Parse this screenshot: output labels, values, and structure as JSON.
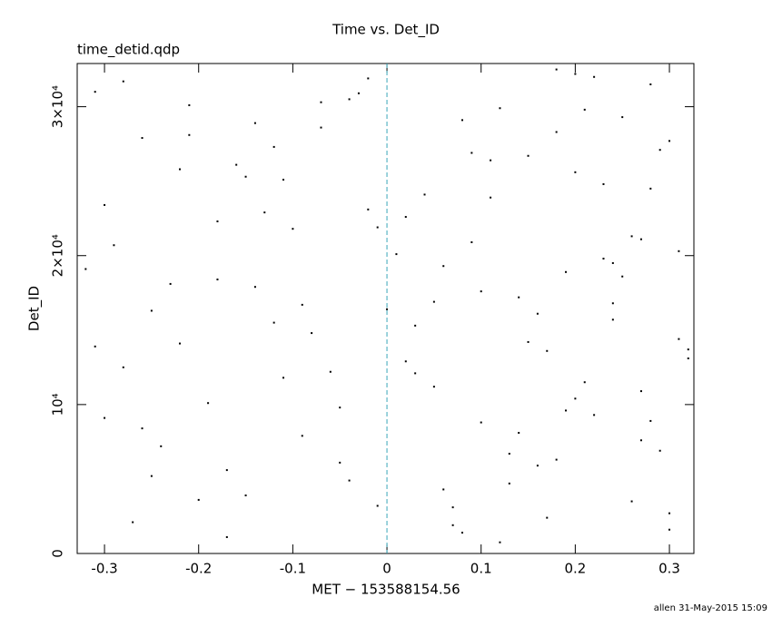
{
  "chart_data": {
    "type": "scatter",
    "title": "Time vs. Det_ID",
    "subtitle": "time_detid.qdp",
    "x_label": "MET − 153588154.56",
    "y_label": "Det_ID",
    "footer": "allen 31-May-2015 15:09",
    "xlim": [
      -0.329,
      0.326
    ],
    "ylim": [
      0,
      32900
    ],
    "xticks": [
      -0.3,
      -0.2,
      -0.1,
      0,
      0.1,
      0.2,
      0.3
    ],
    "yticks": [
      0,
      {
        "value": 10000,
        "label": "10⁴"
      },
      {
        "value": 20000,
        "label": "2×10⁴"
      },
      {
        "value": 30000,
        "label": "3×10⁴"
      }
    ],
    "vline": {
      "x": 0,
      "color": "#3aa6b9"
    },
    "series": [
      {
        "color": "#000000",
        "x": [
          -0.31,
          -0.25,
          -0.18,
          -0.12,
          -0.05,
          0.02,
          0.08,
          0.15,
          0.21,
          0.27,
          0.31,
          -0.28,
          -0.22,
          -0.15,
          -0.09,
          -0.02,
          0.05,
          0.11,
          0.18,
          0.24,
          0.3,
          -0.3,
          -0.19,
          -0.07,
          0.03,
          0.13,
          0.2,
          0.26,
          -0.26,
          -0.14,
          -0.04,
          0.07,
          0.17,
          0.23,
          0.29,
          -0.32,
          -0.21,
          -0.11,
          -0.01,
          0.09,
          0.16,
          0.22,
          0.28,
          -0.29,
          -0.17,
          -0.08,
          0.04,
          0.12,
          0.19,
          0.25,
          0.32,
          -0.24,
          -0.13,
          -0.03,
          0.06,
          0.14,
          0.2,
          0.27,
          -0.27,
          -0.16,
          -0.06,
          0.01,
          0.1,
          0.18,
          0.24,
          0.3,
          -0.31,
          -0.2,
          -0.1,
          0.0,
          0.08,
          0.16,
          0.21,
          0.28,
          -0.23,
          -0.14,
          -0.05,
          0.05,
          0.12,
          0.19,
          0.26,
          0.31,
          -0.28,
          -0.18,
          -0.09,
          0.02,
          0.11,
          0.17,
          0.23,
          0.29,
          -0.25,
          -0.15,
          -0.04,
          0.06,
          0.14,
          0.22,
          0.27,
          -0.3,
          -0.21,
          -0.12,
          -0.02,
          0.07,
          0.15,
          0.2,
          0.25,
          0.32,
          -0.26,
          -0.17,
          -0.07,
          0.03,
          0.09,
          0.13,
          0.18,
          0.24,
          0.3,
          -0.22,
          -0.11,
          -0.01,
          0.1,
          0.28
        ],
        "values": [
          31000,
          5200,
          18400,
          27300,
          9800,
          22600,
          1400,
          14200,
          29800,
          7600,
          20300,
          12500,
          25800,
          3900,
          16700,
          31900,
          11200,
          26400,
          6300,
          19500,
          2700,
          23400,
          10100,
          28600,
          15300,
          4700,
          32200,
          21300,
          8400,
          17900,
          30500,
          1900,
          13600,
          24800,
          6900,
          19100,
          28100,
          11800,
          3200,
          26900,
          16100,
          9300,
          31500,
          20700,
          5600,
          14800,
          24100,
          750,
          18900,
          29300,
          13100,
          7200,
          22900,
          30900,
          4300,
          17200,
          25600,
          10900,
          2100,
          26100,
          12200,
          20100,
          8800,
          32500,
          15700,
          27700,
          13900,
          3600,
          21800,
          16400,
          29100,
          5900,
          11500,
          24500,
          18100,
          28900,
          6100,
          16900,
          29900,
          9600,
          3500,
          14400,
          31700,
          22300,
          7900,
          12900,
          23900,
          2400,
          19800,
          27100,
          16300,
          25300,
          4900,
          19300,
          8100,
          32000,
          21100,
          9100,
          30100,
          15500,
          23100,
          3100,
          26700,
          10400,
          18600,
          13700,
          27900,
          1100,
          30300,
          12100,
          20900,
          6700,
          28300,
          16800,
          1600,
          14100,
          25100,
          21900,
          17600,
          8900
        ]
      }
    ]
  }
}
